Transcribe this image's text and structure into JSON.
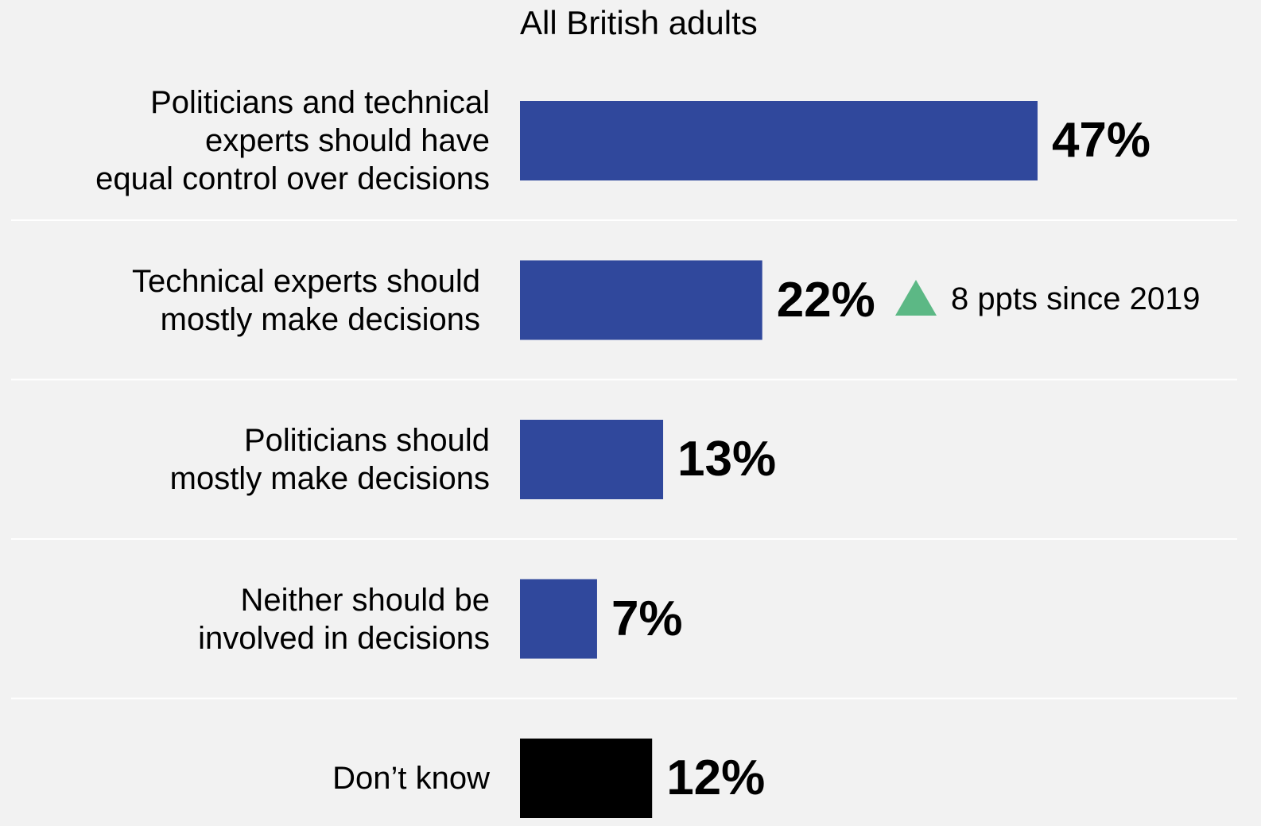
{
  "chart_data": {
    "type": "bar",
    "orientation": "horizontal",
    "subtitle": "All British adults",
    "categories": [
      "Politicians and technical\nexperts should have\nequal control over decisions",
      "Technical experts should\nmostly make decisions",
      "Politicians should\nmostly make decisions",
      "Neither should be\ninvolved in decisions",
      "Don’t know"
    ],
    "values": [
      47,
      22,
      13,
      7,
      12
    ],
    "value_labels": [
      "47%",
      "22%",
      "13%",
      "7%",
      "12%"
    ],
    "unit": "%",
    "colors": [
      "#30489c",
      "#30489c",
      "#30489c",
      "#30489c",
      "#000000"
    ],
    "annotation": {
      "category_index": 1,
      "text": "8 ppts since 2019",
      "icon": "up-triangle-icon",
      "color": "#5cb885"
    },
    "grid": false,
    "legend": "none"
  }
}
